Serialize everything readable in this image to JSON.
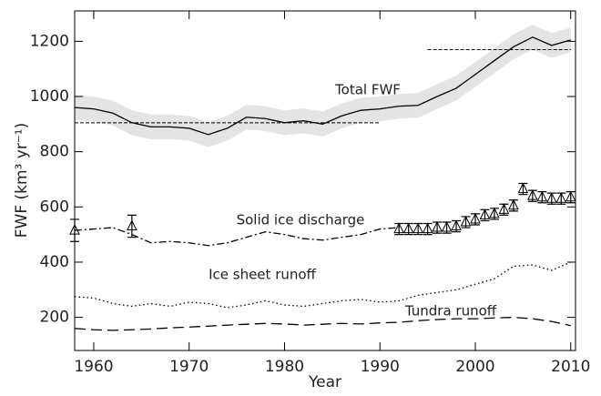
{
  "chart_data": {
    "type": "line",
    "xlabel": "Year",
    "ylabel": "FWF (km³ yr⁻¹)",
    "xlim": [
      1958,
      2010.5
    ],
    "ylim": [
      80,
      1310
    ],
    "xticks": [
      1960,
      1970,
      1980,
      1990,
      2000,
      2010
    ],
    "yticks": [
      200,
      400,
      600,
      800,
      1000,
      1200
    ],
    "series": [
      {
        "name": "Total FWF",
        "color": "#000000",
        "line_style": "solid",
        "uncertainty": 45,
        "band_color": "#e4e4e4",
        "x": [
          1958,
          1960,
          1962,
          1964,
          1966,
          1968,
          1970,
          1972,
          1974,
          1976,
          1978,
          1980,
          1982,
          1984,
          1986,
          1988,
          1990,
          1992,
          1994,
          1996,
          1998,
          2000,
          2002,
          2004,
          2006,
          2008,
          2010
        ],
        "values": [
          960,
          955,
          940,
          905,
          890,
          890,
          885,
          862,
          885,
          925,
          920,
          905,
          912,
          900,
          930,
          950,
          955,
          965,
          968,
          1000,
          1030,
          1080,
          1130,
          1180,
          1215,
          1185,
          1205
        ]
      },
      {
        "name": "Solid ice discharge",
        "color": "#000000",
        "line_style": "dashdot",
        "x": [
          1958,
          1960,
          1962,
          1964,
          1966,
          1968,
          1970,
          1972,
          1974,
          1976,
          1978,
          1980,
          1982,
          1984,
          1986,
          1988,
          1990,
          1992
        ],
        "values": [
          515,
          520,
          525,
          500,
          470,
          475,
          470,
          460,
          470,
          490,
          510,
          500,
          485,
          480,
          490,
          500,
          520,
          525
        ]
      },
      {
        "name": "Ice sheet runoff",
        "color": "#000000",
        "line_style": "dotted",
        "x": [
          1958,
          1960,
          1962,
          1964,
          1966,
          1968,
          1970,
          1972,
          1974,
          1976,
          1978,
          1980,
          1982,
          1984,
          1986,
          1988,
          1990,
          1992,
          1994,
          1996,
          1998,
          2000,
          2002,
          2004,
          2006,
          2008,
          2010
        ],
        "values": [
          275,
          270,
          250,
          240,
          250,
          240,
          255,
          250,
          235,
          245,
          260,
          245,
          240,
          250,
          260,
          265,
          255,
          260,
          280,
          290,
          300,
          320,
          340,
          385,
          390,
          370,
          400
        ]
      },
      {
        "name": "Tundra runoff",
        "color": "#000000",
        "line_style": "dashed",
        "x": [
          1958,
          1960,
          1962,
          1964,
          1966,
          1968,
          1970,
          1972,
          1974,
          1976,
          1978,
          1980,
          1982,
          1984,
          1986,
          1988,
          1990,
          1992,
          1994,
          1996,
          1998,
          2000,
          2002,
          2004,
          2006,
          2008,
          2010
        ],
        "values": [
          160,
          155,
          153,
          155,
          158,
          162,
          165,
          168,
          172,
          175,
          178,
          176,
          172,
          175,
          178,
          176,
          180,
          182,
          188,
          192,
          195,
          195,
          198,
          200,
          195,
          185,
          170
        ]
      },
      {
        "name": "Solid ice discharge",
        "color": "#000000",
        "marker": "triangle",
        "x": [
          1958,
          1964,
          1992,
          1993,
          1994,
          1995,
          1996,
          1997,
          1998,
          1999,
          2000,
          2001,
          2002,
          2003,
          2004,
          2005,
          2006,
          2007,
          2008,
          2009,
          2010
        ],
        "values": [
          515,
          530,
          520,
          520,
          520,
          520,
          525,
          525,
          530,
          545,
          555,
          570,
          575,
          590,
          605,
          665,
          640,
          635,
          630,
          630,
          635
        ],
        "errors": [
          40,
          40,
          20,
          20,
          20,
          20,
          20,
          20,
          20,
          20,
          20,
          20,
          20,
          20,
          20,
          20,
          20,
          20,
          20,
          20,
          20
        ]
      }
    ],
    "reference_lines": [
      {
        "x": [
          1958,
          1990
        ],
        "y": 905
      },
      {
        "x": [
          1995,
          2010
        ],
        "y": 1170
      }
    ],
    "annotations": [
      "Total FWF",
      "Solid ice discharge",
      "Ice sheet runoff",
      "Tundra runoff"
    ]
  }
}
